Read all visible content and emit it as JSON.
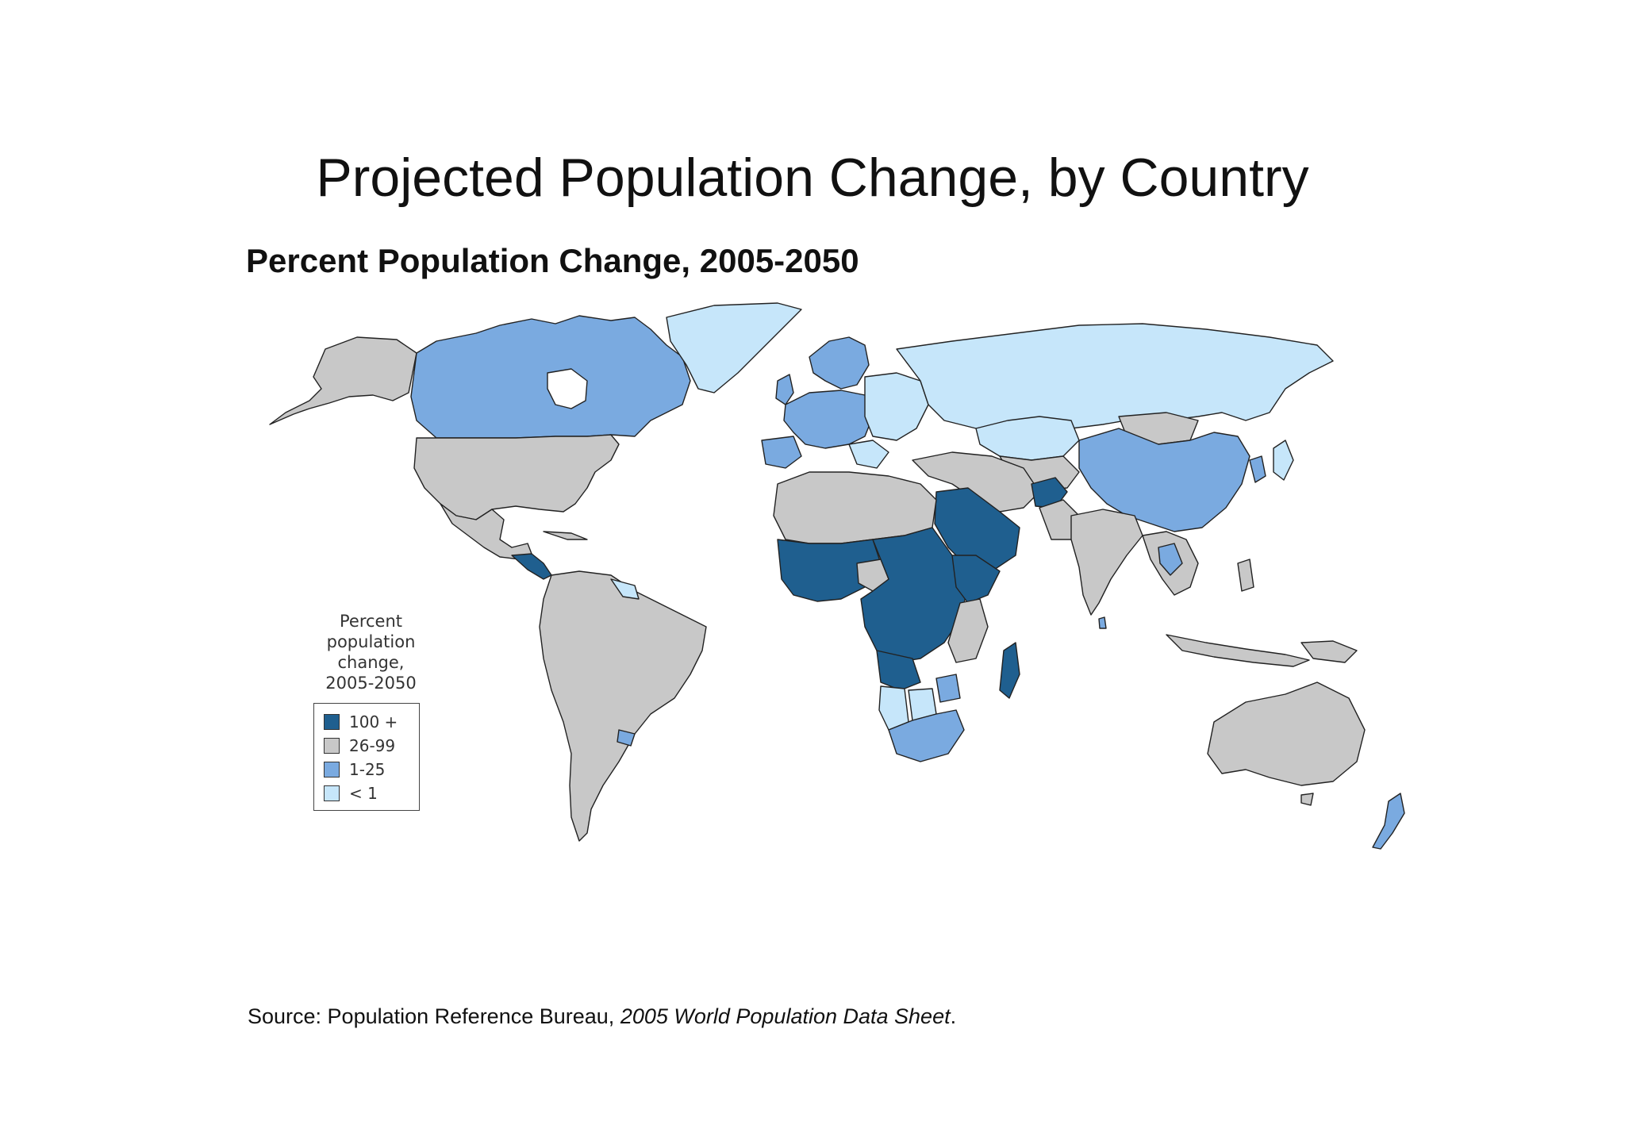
{
  "title": "Projected Population Change, by Country",
  "subtitle": "Percent Population Change, 2005-2050",
  "legend": {
    "title_lines": [
      "Percent",
      "population",
      "change,",
      "2005-2050"
    ],
    "items": [
      {
        "label": "100 +",
        "color": "#1f5f8f"
      },
      {
        "label": "26-99",
        "color": "#c8c8c8"
      },
      {
        "label": "1-25",
        "color": "#7aaae0"
      },
      {
        "label": "< 1",
        "color": "#c6e6fa"
      }
    ]
  },
  "source": {
    "prefix": "Source: Population Reference Bureau, ",
    "italic": "2005 World Population Data Sheet",
    "suffix": "."
  },
  "colors": {
    "very_high": "#1f5f8f",
    "high": "#c8c8c8",
    "low": "#7aaae0",
    "negative": "#c6e6fa",
    "border": "#222222"
  }
}
